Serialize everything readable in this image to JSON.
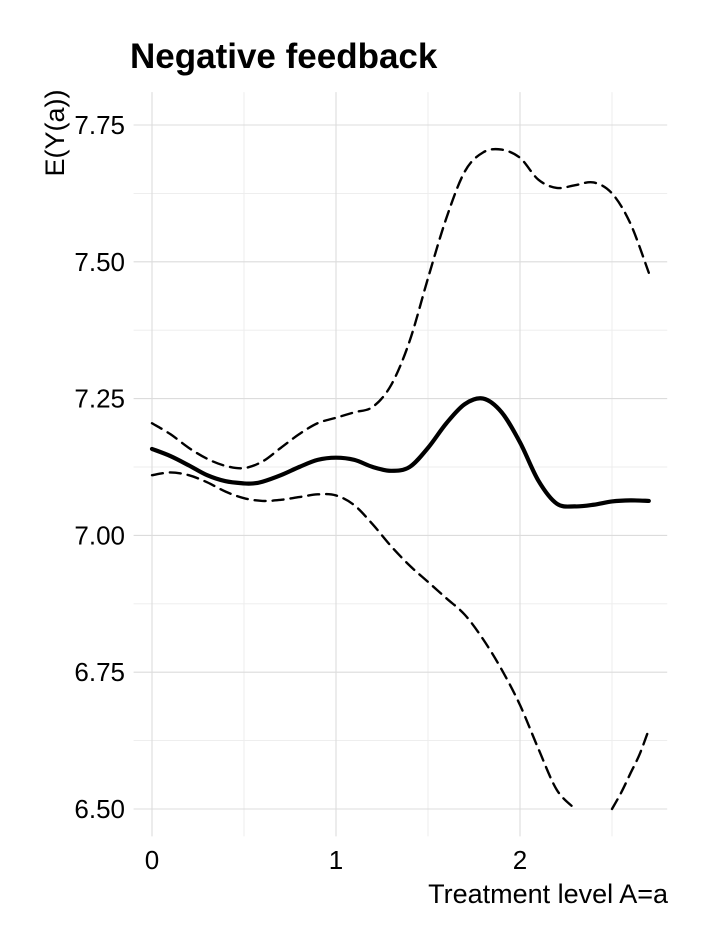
{
  "chart_data": {
    "type": "line",
    "title": "Negative feedback",
    "xlabel": "Treatment level A=a",
    "ylabel": "E(Y(a))",
    "xlim": [
      -0.1,
      2.8
    ],
    "ylim": [
      6.45,
      7.81
    ],
    "x_ticks": [
      0,
      1,
      2
    ],
    "x_tick_labels": [
      "0",
      "1",
      "2"
    ],
    "y_ticks": [
      6.5,
      6.75,
      7.0,
      7.25,
      7.5,
      7.75
    ],
    "y_tick_labels": [
      "6.50",
      "6.75",
      "7.00",
      "7.25",
      "7.50",
      "7.75"
    ],
    "grid": true,
    "legend": "none",
    "series": [
      {
        "style": "solid",
        "x": [
          0,
          0.1,
          0.2,
          0.3,
          0.4,
          0.5,
          0.55,
          0.6,
          0.7,
          0.8,
          0.9,
          1.0,
          1.1,
          1.2,
          1.3,
          1.4,
          1.5,
          1.6,
          1.7,
          1.8,
          1.9,
          2.0,
          2.1,
          2.2,
          2.3,
          2.4,
          2.5,
          2.6,
          2.7
        ],
        "y": [
          7.158,
          7.145,
          7.128,
          7.11,
          7.099,
          7.095,
          7.095,
          7.098,
          7.11,
          7.125,
          7.138,
          7.142,
          7.138,
          7.125,
          7.118,
          7.125,
          7.16,
          7.205,
          7.24,
          7.25,
          7.225,
          7.17,
          7.1,
          7.058,
          7.053,
          7.056,
          7.062,
          7.064,
          7.063
        ]
      },
      {
        "style": "dashed",
        "x": [
          0,
          0.1,
          0.2,
          0.3,
          0.4,
          0.5,
          0.6,
          0.7,
          0.8,
          0.9,
          1.0,
          1.1,
          1.2,
          1.3,
          1.4,
          1.5,
          1.6,
          1.7,
          1.8,
          1.9,
          2.0,
          2.1,
          2.2,
          2.3,
          2.4,
          2.5,
          2.6,
          2.7
        ],
        "y": [
          7.205,
          7.185,
          7.16,
          7.14,
          7.127,
          7.123,
          7.135,
          7.16,
          7.185,
          7.205,
          7.215,
          7.225,
          7.235,
          7.275,
          7.355,
          7.47,
          7.58,
          7.665,
          7.7,
          7.705,
          7.69,
          7.65,
          7.635,
          7.64,
          7.645,
          7.625,
          7.57,
          7.48
        ]
      },
      {
        "style": "dashed",
        "x": [
          0,
          0.1,
          0.2,
          0.3,
          0.4,
          0.5,
          0.6,
          0.7,
          0.8,
          0.9,
          1.0,
          1.1,
          1.2,
          1.3,
          1.4,
          1.5,
          1.6,
          1.7,
          1.8,
          1.9,
          2.0,
          2.1,
          2.2,
          2.3
        ],
        "y": [
          7.11,
          7.115,
          7.11,
          7.097,
          7.08,
          7.068,
          7.063,
          7.065,
          7.07,
          7.075,
          7.073,
          7.055,
          7.02,
          6.98,
          6.945,
          6.915,
          6.885,
          6.855,
          6.81,
          6.755,
          6.69,
          6.61,
          6.535,
          6.5
        ]
      },
      {
        "style": "dashed",
        "x": [
          2.5,
          2.55,
          2.6,
          2.65,
          2.7
        ],
        "y": [
          6.5,
          6.53,
          6.565,
          6.6,
          6.645
        ]
      }
    ]
  }
}
